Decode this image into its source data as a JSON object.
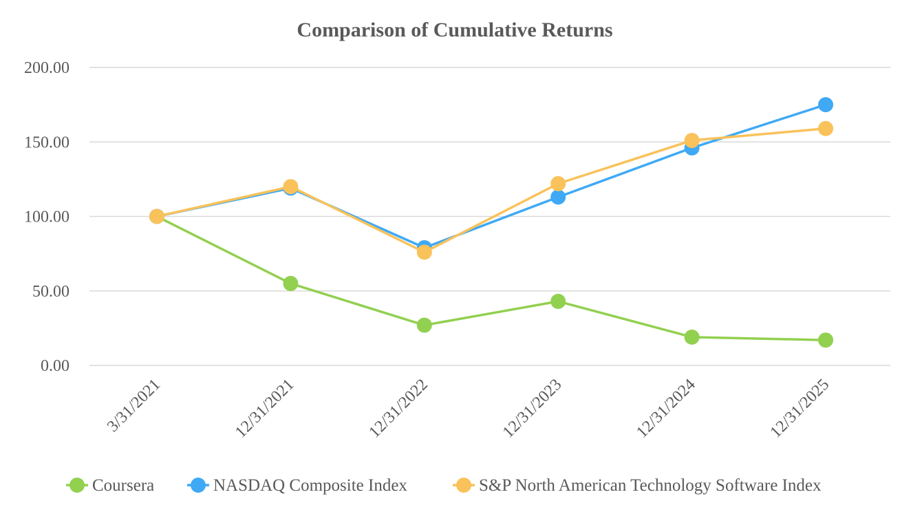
{
  "chart_data": {
    "type": "line",
    "title": "Comparison of Cumulative Returns",
    "xlabel": "",
    "ylabel": "",
    "categories": [
      "3/31/2021",
      "12/31/2021",
      "12/31/2022",
      "12/31/2023",
      "12/31/2024",
      "12/31/2025"
    ],
    "y_tick_labels": [
      "0.00",
      "50.00",
      "100.00",
      "150.00",
      "200.00"
    ],
    "y_ticks": [
      0,
      50,
      100,
      150,
      200
    ],
    "ylim": [
      0,
      200
    ],
    "grid": true,
    "legend_position": "bottom",
    "series": [
      {
        "name": "Coursera",
        "color": "#92d050",
        "values": [
          100,
          55,
          27,
          43,
          19,
          17
        ]
      },
      {
        "name": "NASDAQ Composite Index",
        "color": "#3fa9f5",
        "values": [
          100,
          119,
          79,
          113,
          146,
          175
        ]
      },
      {
        "name": "S&P North American Technology Software Index",
        "color": "#f9c25a",
        "values": [
          100,
          120,
          76,
          122,
          151,
          159
        ]
      }
    ]
  }
}
